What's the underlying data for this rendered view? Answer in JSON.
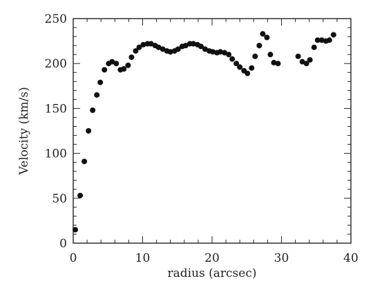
{
  "chart_data": {
    "type": "scatter",
    "title": "",
    "xlabel": "radius (arcsec)",
    "ylabel": "Velocity (km/s)",
    "xlim": [
      0,
      40
    ],
    "ylim": [
      0,
      250
    ],
    "x_ticks": [
      0,
      10,
      20,
      30,
      40
    ],
    "y_ticks": [
      0,
      50,
      100,
      150,
      200,
      250
    ],
    "x_minor_step": 2,
    "y_minor_step": 10,
    "grid": false,
    "marker_color": "#111111",
    "series": [
      {
        "points": [
          [
            0.3,
            15
          ],
          [
            1.0,
            53
          ],
          [
            1.6,
            91
          ],
          [
            2.2,
            125
          ],
          [
            2.8,
            148
          ],
          [
            3.4,
            165
          ],
          [
            3.9,
            179
          ],
          [
            4.5,
            193
          ],
          [
            5.1,
            200
          ],
          [
            5.6,
            202
          ],
          [
            6.2,
            200
          ],
          [
            6.8,
            193
          ],
          [
            7.3,
            194
          ],
          [
            7.9,
            198
          ],
          [
            8.4,
            207
          ],
          [
            9.0,
            214
          ],
          [
            9.5,
            218
          ],
          [
            10.1,
            221
          ],
          [
            10.7,
            222
          ],
          [
            11.2,
            222
          ],
          [
            11.8,
            220
          ],
          [
            12.3,
            218
          ],
          [
            12.9,
            216
          ],
          [
            13.5,
            214
          ],
          [
            14.0,
            213
          ],
          [
            14.6,
            214
          ],
          [
            15.1,
            216
          ],
          [
            15.7,
            219
          ],
          [
            16.2,
            220
          ],
          [
            16.8,
            222
          ],
          [
            17.3,
            222
          ],
          [
            17.9,
            221
          ],
          [
            18.4,
            219
          ],
          [
            19.0,
            216
          ],
          [
            19.6,
            214
          ],
          [
            20.1,
            213
          ],
          [
            20.7,
            212
          ],
          [
            21.2,
            213
          ],
          [
            21.8,
            212
          ],
          [
            22.4,
            210
          ],
          [
            22.9,
            205
          ],
          [
            23.5,
            200
          ],
          [
            24.0,
            196
          ],
          [
            24.6,
            192
          ],
          [
            25.1,
            189
          ],
          [
            25.7,
            195
          ],
          [
            26.2,
            208
          ],
          [
            26.8,
            220
          ],
          [
            27.3,
            233
          ],
          [
            27.9,
            229
          ],
          [
            28.4,
            210
          ],
          [
            28.9,
            201
          ],
          [
            29.5,
            200
          ],
          [
            32.4,
            208
          ],
          [
            33.0,
            202
          ],
          [
            33.6,
            200
          ],
          [
            34.1,
            204
          ],
          [
            34.7,
            218
          ],
          [
            35.2,
            226
          ],
          [
            35.8,
            226
          ],
          [
            36.4,
            225
          ],
          [
            36.9,
            226
          ],
          [
            37.5,
            232
          ]
        ]
      }
    ]
  }
}
